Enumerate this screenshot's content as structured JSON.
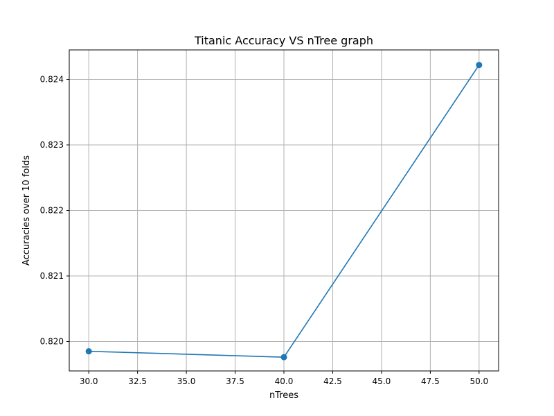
{
  "chart_data": {
    "type": "line",
    "title": "Titanic Accuracy VS nTree graph",
    "xlabel": "nTrees",
    "ylabel": "Accuracies over 10 folds",
    "xlim": [
      29.0,
      51.0
    ],
    "ylim": [
      0.81955,
      0.82445
    ],
    "xticks": [
      30.0,
      32.5,
      35.0,
      37.5,
      40.0,
      42.5,
      45.0,
      47.5,
      50.0
    ],
    "xtick_labels": [
      "30.0",
      "32.5",
      "35.0",
      "37.5",
      "40.0",
      "42.5",
      "45.0",
      "47.5",
      "50.0"
    ],
    "yticks": [
      0.82,
      0.821,
      0.822,
      0.823,
      0.824
    ],
    "ytick_labels": [
      "0.820",
      "0.821",
      "0.822",
      "0.823",
      "0.824"
    ],
    "grid": true,
    "series": [
      {
        "color": "#1f77b4",
        "marker": "circle",
        "x": [
          30,
          40,
          50
        ],
        "y": [
          0.81985,
          0.81976,
          0.82422
        ]
      }
    ]
  }
}
